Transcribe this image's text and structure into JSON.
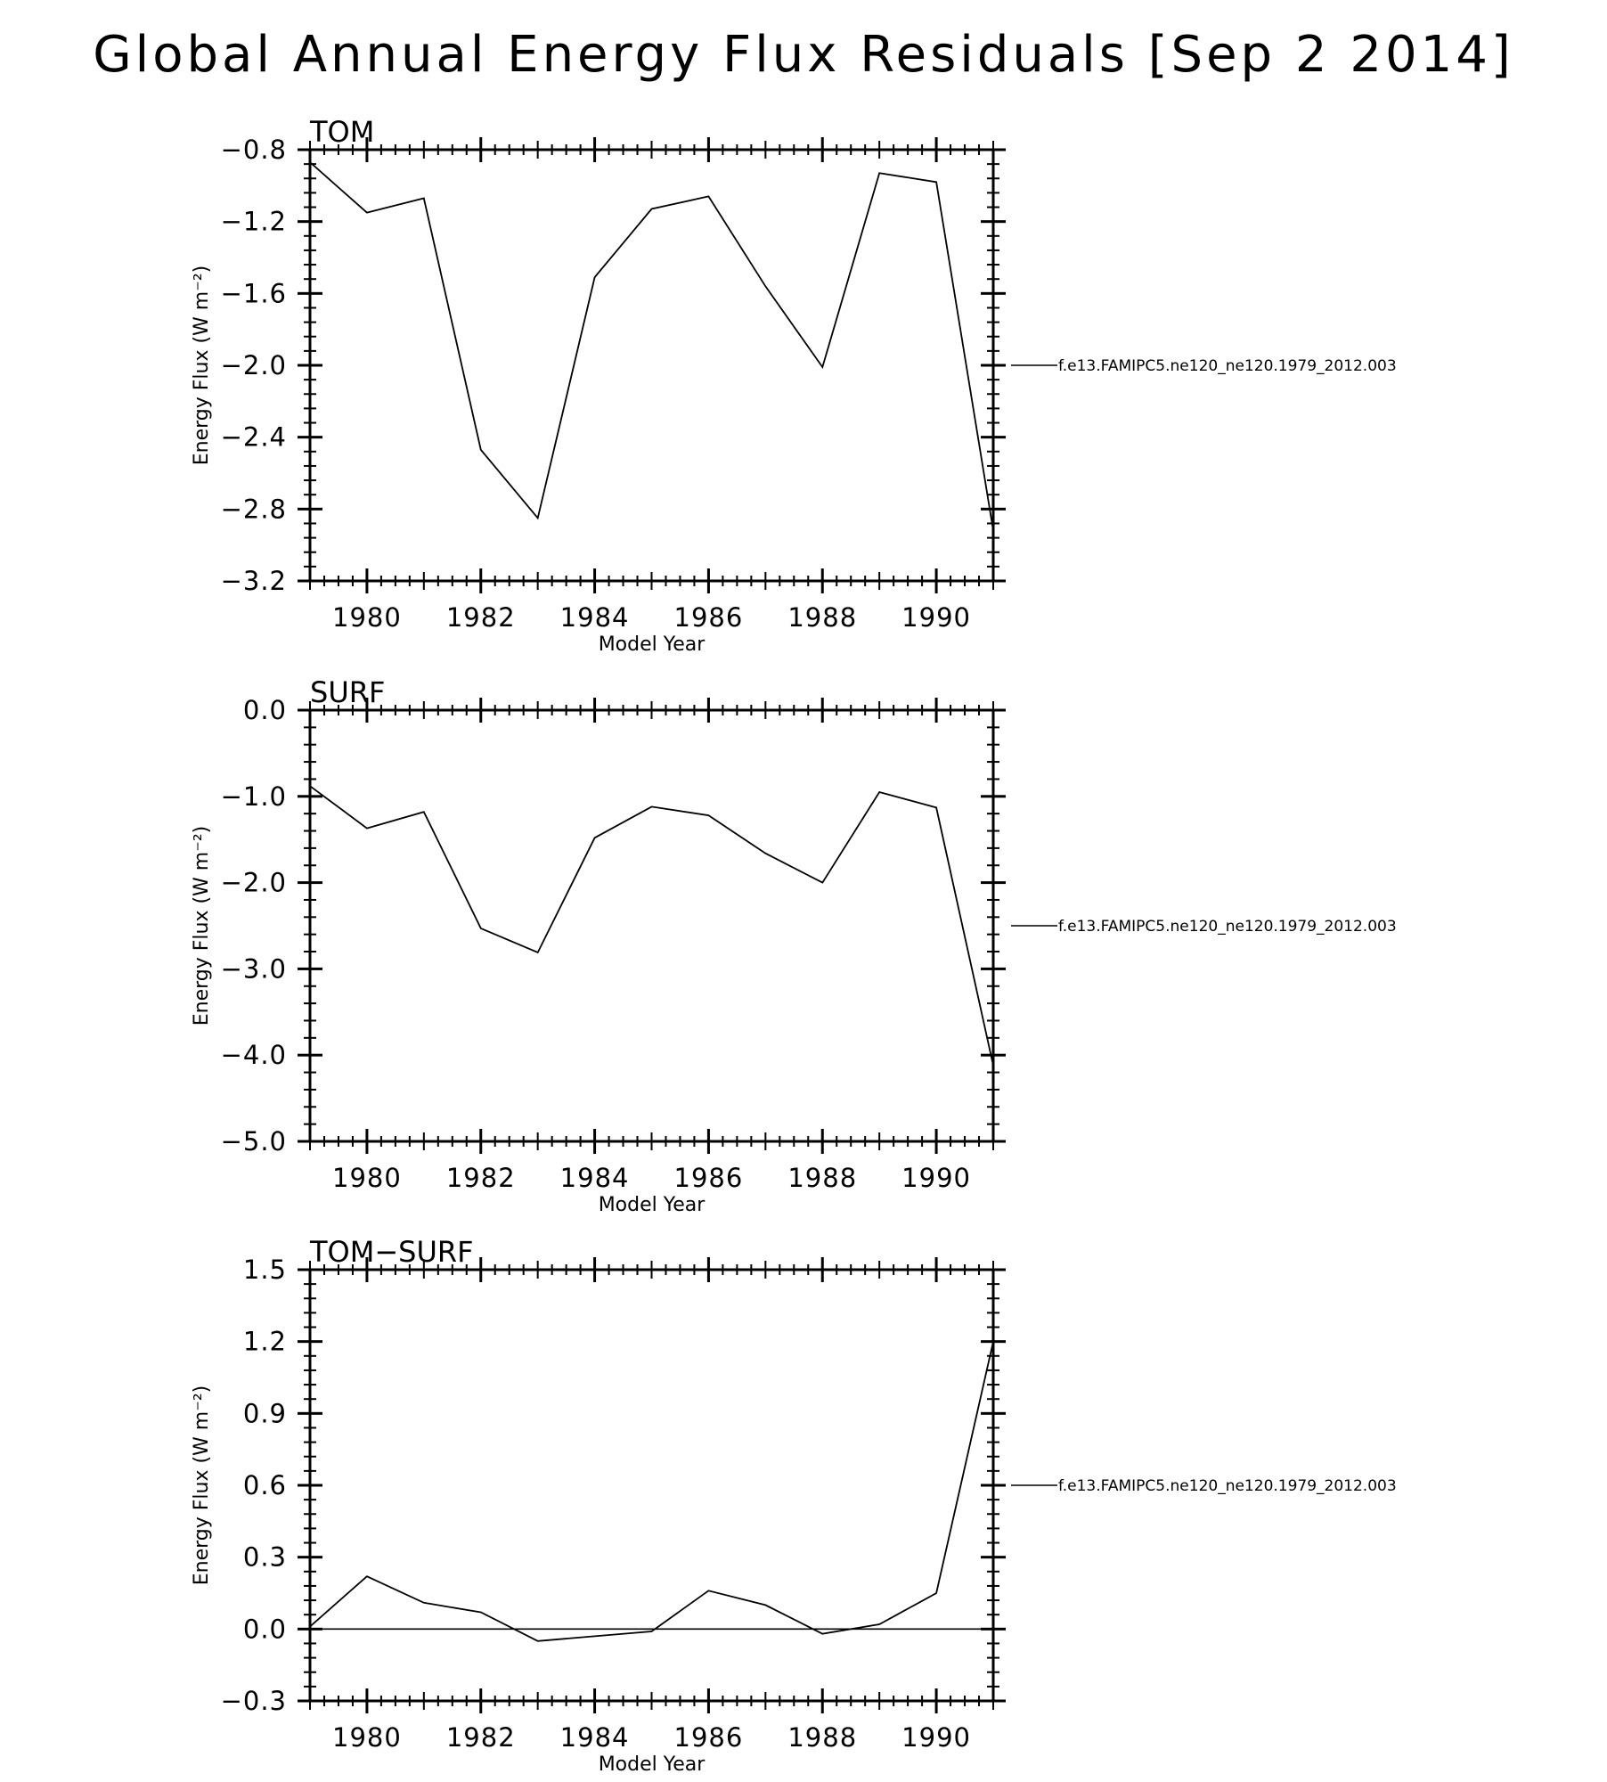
{
  "figure": {
    "title": "Global Annual Energy Flux Residuals [Sep  2 2014]"
  },
  "chart_data": [
    {
      "type": "line",
      "title": "TOM",
      "xlabel": "Model Year",
      "ylabel": "Energy Flux (W m⁻²)",
      "xlim": [
        1979,
        1991
      ],
      "ylim": [
        -3.2,
        -0.8
      ],
      "xticks": [
        1980,
        1982,
        1984,
        1986,
        1988,
        1990
      ],
      "yticks": [
        -0.8,
        -1.2,
        -1.6,
        -2.0,
        -2.4,
        -2.8,
        -3.2
      ],
      "ytick_decimals": 1,
      "legend": "right",
      "zero_line": false,
      "series": [
        {
          "name": "f.e13.FAMIPC5.ne120_ne120.1979_2012.003",
          "x": [
            1979,
            1980,
            1981,
            1982,
            1983,
            1984,
            1985,
            1986,
            1987,
            1988,
            1989,
            1990,
            1991
          ],
          "y": [
            -0.87,
            -1.15,
            -1.07,
            -2.47,
            -2.85,
            -1.51,
            -1.13,
            -1.06,
            -1.56,
            -2.01,
            -0.93,
            -0.98,
            -2.92
          ]
        }
      ]
    },
    {
      "type": "line",
      "title": "SURF",
      "xlabel": "Model Year",
      "ylabel": "Energy Flux (W m⁻²)",
      "xlim": [
        1979,
        1991
      ],
      "ylim": [
        -5.0,
        0.0
      ],
      "xticks": [
        1980,
        1982,
        1984,
        1986,
        1988,
        1990
      ],
      "yticks": [
        0.0,
        -1.0,
        -2.0,
        -3.0,
        -4.0,
        -5.0
      ],
      "ytick_decimals": 1,
      "legend": "right",
      "zero_line": false,
      "series": [
        {
          "name": "f.e13.FAMIPC5.ne120_ne120.1979_2012.003",
          "x": [
            1979,
            1980,
            1981,
            1982,
            1983,
            1984,
            1985,
            1986,
            1987,
            1988,
            1989,
            1990,
            1991
          ],
          "y": [
            -0.88,
            -1.37,
            -1.18,
            -2.53,
            -2.81,
            -1.48,
            -1.12,
            -1.22,
            -1.66,
            -2.0,
            -0.95,
            -1.13,
            -4.12
          ]
        }
      ]
    },
    {
      "type": "line",
      "title": "TOM−SURF",
      "xlabel": "Model Year",
      "ylabel": "Energy Flux (W m⁻²)",
      "xlim": [
        1979,
        1991
      ],
      "ylim": [
        -0.3,
        1.5
      ],
      "xticks": [
        1980,
        1982,
        1984,
        1986,
        1988,
        1990
      ],
      "yticks": [
        1.5,
        1.2,
        0.9,
        0.6,
        0.3,
        0.0,
        -0.3
      ],
      "ytick_decimals": 1,
      "legend": "right",
      "zero_line": true,
      "series": [
        {
          "name": "f.e13.FAMIPC5.ne120_ne120.1979_2012.003",
          "x": [
            1979,
            1980,
            1981,
            1982,
            1983,
            1984,
            1985,
            1986,
            1987,
            1988,
            1989,
            1990,
            1991
          ],
          "y": [
            0.01,
            0.22,
            0.11,
            0.07,
            -0.05,
            -0.03,
            -0.01,
            0.16,
            0.1,
            -0.02,
            0.02,
            0.15,
            1.2
          ]
        }
      ]
    }
  ]
}
